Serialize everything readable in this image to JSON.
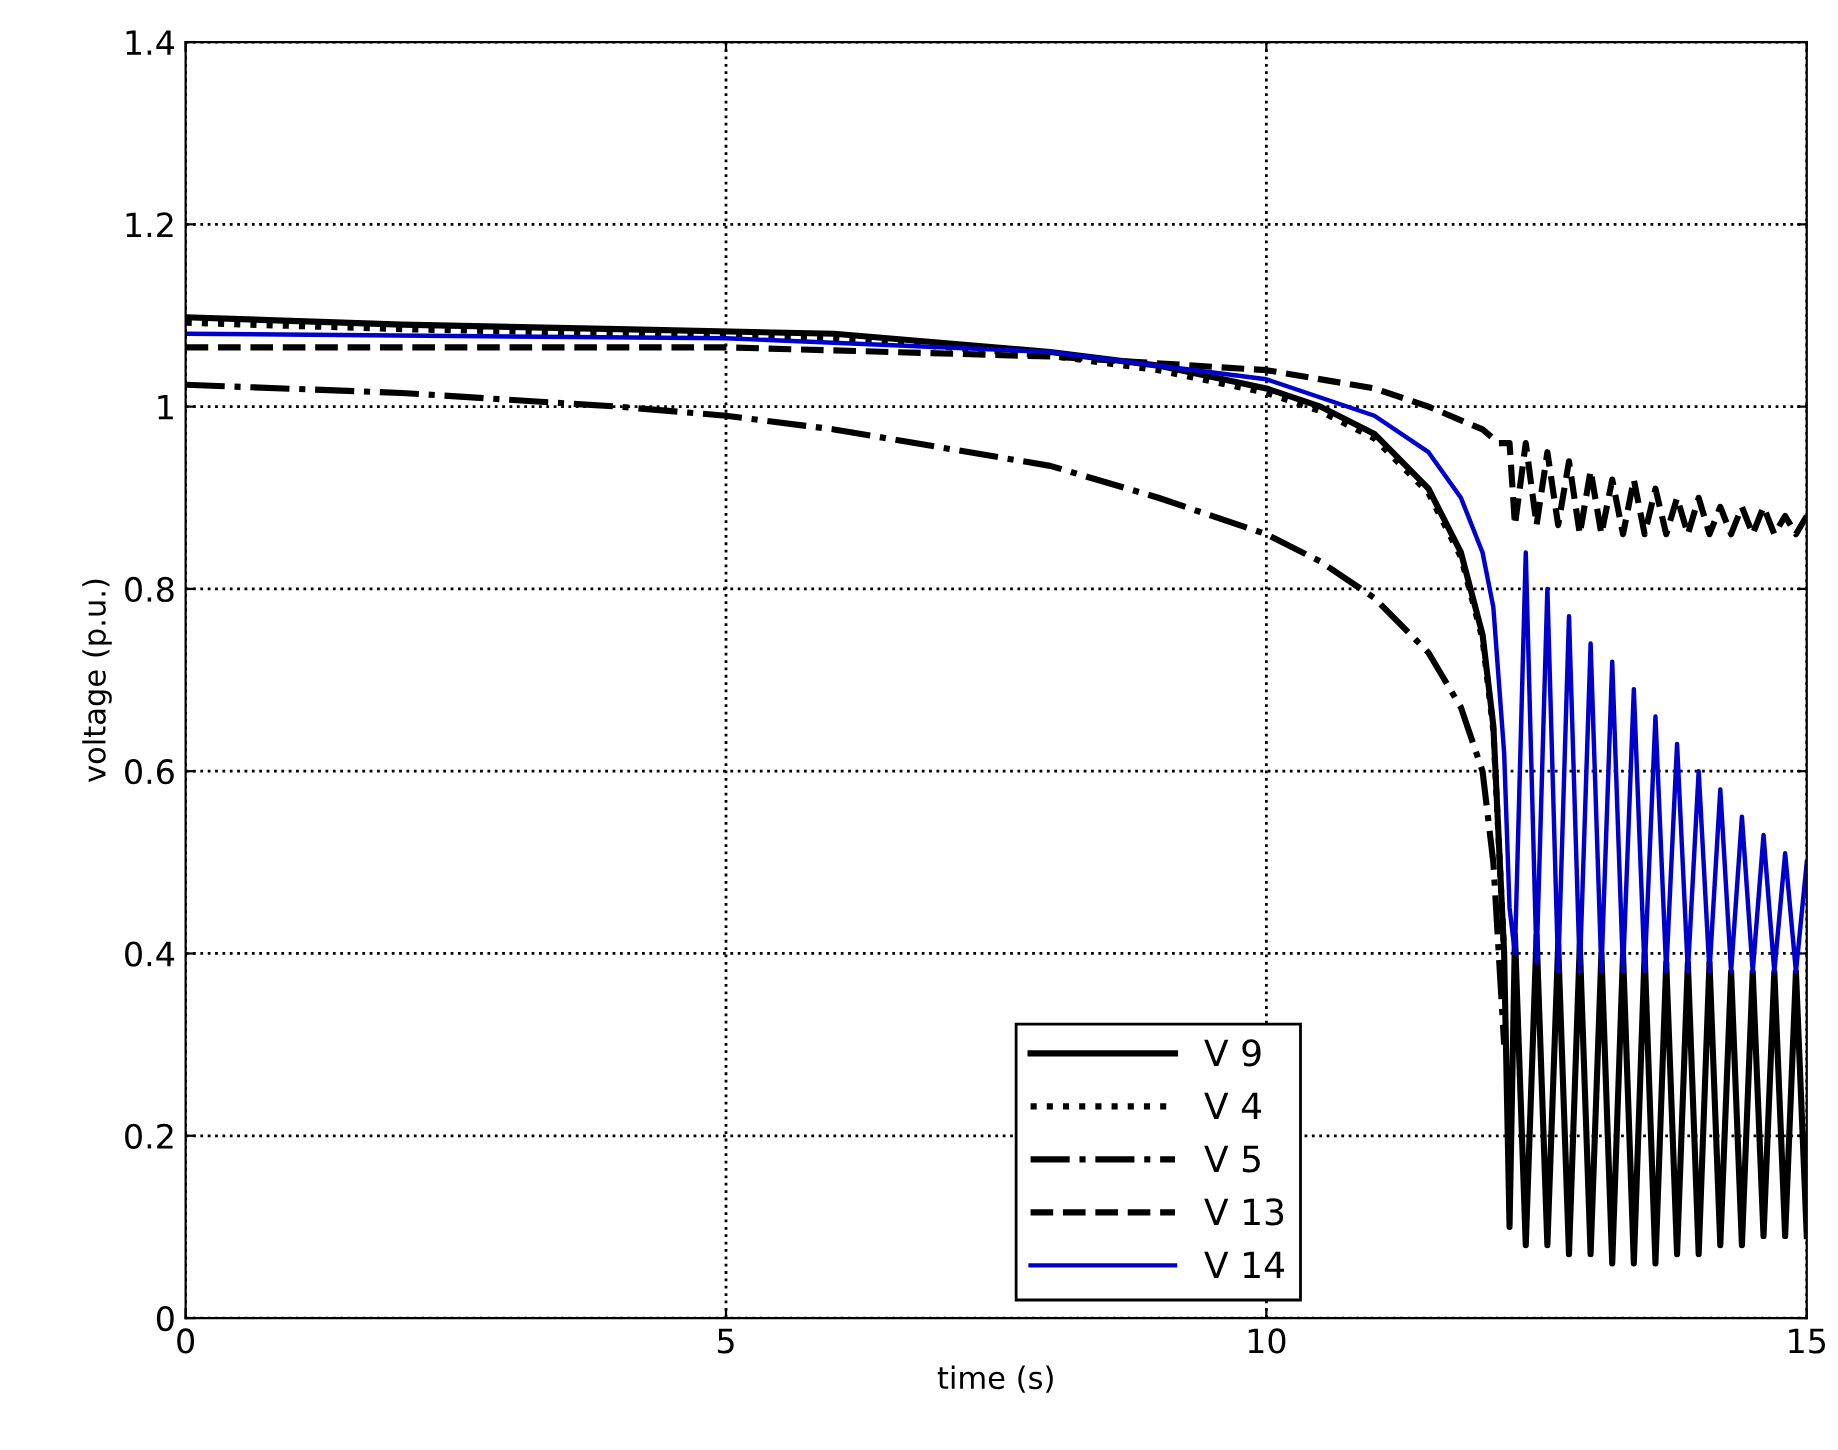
{
  "chart_data": {
    "type": "line",
    "xlabel": "time (s)",
    "ylabel": "voltage (p.u.)",
    "xlim": [
      0,
      15
    ],
    "ylim": [
      0,
      1.4
    ],
    "xticks": [
      0,
      5,
      10,
      15
    ],
    "yticks": [
      0,
      0.2,
      0.4,
      0.6,
      0.8,
      1,
      1.2,
      1.4
    ],
    "grid": true,
    "legend": "bottom",
    "series": [
      {
        "name": "V 9",
        "color": "#000000",
        "line_style": "solid",
        "x": [
          0,
          2,
          4,
          6,
          8,
          9,
          10,
          10.5,
          11,
          11.5,
          11.8,
          12.0,
          12.1,
          12.2,
          12.25,
          12.3,
          12.4,
          12.5,
          12.6,
          12.7,
          12.8,
          12.9,
          13.0,
          13.1,
          13.2,
          13.3,
          13.4,
          13.5,
          13.6,
          13.7,
          13.8,
          13.9,
          14.0,
          14.1,
          14.2,
          14.3,
          14.4,
          14.5,
          14.6,
          14.7,
          14.8,
          14.9,
          15.0
        ],
        "values": [
          1.098,
          1.09,
          1.085,
          1.08,
          1.06,
          1.045,
          1.02,
          1.0,
          0.97,
          0.91,
          0.84,
          0.75,
          0.65,
          0.4,
          0.1,
          0.42,
          0.08,
          0.42,
          0.08,
          0.41,
          0.07,
          0.41,
          0.07,
          0.4,
          0.06,
          0.4,
          0.06,
          0.4,
          0.06,
          0.39,
          0.07,
          0.39,
          0.07,
          0.39,
          0.08,
          0.38,
          0.08,
          0.38,
          0.09,
          0.38,
          0.09,
          0.38,
          0.09
        ]
      },
      {
        "name": "V 4",
        "color": "#000000",
        "line_style": "dotted",
        "x": [
          0,
          2,
          4,
          6,
          8,
          9,
          10,
          10.5,
          11,
          11.5,
          11.8,
          12.0,
          12.1,
          12.2
        ],
        "values": [
          1.092,
          1.085,
          1.08,
          1.075,
          1.056,
          1.04,
          1.015,
          0.995,
          0.965,
          0.905,
          0.835,
          0.745,
          0.645,
          0.4
        ]
      },
      {
        "name": "V 5",
        "color": "#000000",
        "line_style": "dashdot",
        "x": [
          0,
          2,
          4,
          5,
          6,
          7,
          8,
          9,
          10,
          10.5,
          11,
          11.5,
          11.8,
          12.0,
          12.1,
          12.2
        ],
        "values": [
          1.024,
          1.015,
          1.0,
          0.99,
          0.975,
          0.955,
          0.935,
          0.9,
          0.86,
          0.83,
          0.79,
          0.73,
          0.67,
          0.6,
          0.5,
          0.3
        ]
      },
      {
        "name": "V 13",
        "color": "#000000",
        "line_style": "dashed",
        "x": [
          0,
          5,
          8,
          10,
          11,
          11.5,
          12.0,
          12.15,
          12.25,
          12.3,
          12.4,
          12.5,
          12.6,
          12.7,
          12.8,
          12.9,
          13.0,
          13.1,
          13.2,
          13.3,
          13.4,
          13.5,
          13.6,
          13.7,
          13.8,
          13.9,
          14.0,
          14.1,
          14.2,
          14.3,
          14.4,
          14.5,
          14.6,
          14.7,
          14.8,
          14.9,
          15.0
        ],
        "values": [
          1.065,
          1.065,
          1.055,
          1.04,
          1.02,
          1.0,
          0.975,
          0.96,
          0.96,
          0.87,
          0.96,
          0.87,
          0.95,
          0.87,
          0.94,
          0.86,
          0.93,
          0.86,
          0.92,
          0.86,
          0.92,
          0.86,
          0.91,
          0.86,
          0.9,
          0.86,
          0.9,
          0.86,
          0.89,
          0.86,
          0.89,
          0.86,
          0.89,
          0.86,
          0.88,
          0.86,
          0.88
        ]
      },
      {
        "name": "V 14",
        "color": "#0000cc",
        "line_style": "solid",
        "x": [
          0,
          5,
          8,
          10,
          11,
          11.5,
          11.8,
          12.0,
          12.1,
          12.2,
          12.25,
          12.3,
          12.4,
          12.5,
          12.6,
          12.7,
          12.8,
          12.9,
          13.0,
          13.1,
          13.2,
          13.3,
          13.4,
          13.5,
          13.6,
          13.7,
          13.8,
          13.9,
          14.0,
          14.1,
          14.2,
          14.3,
          14.4,
          14.5,
          14.6,
          14.7,
          14.8,
          14.9,
          15.0
        ],
        "values": [
          1.08,
          1.075,
          1.06,
          1.03,
          0.99,
          0.95,
          0.9,
          0.84,
          0.78,
          0.62,
          0.45,
          0.4,
          0.84,
          0.39,
          0.8,
          0.38,
          0.77,
          0.38,
          0.74,
          0.38,
          0.72,
          0.38,
          0.69,
          0.38,
          0.66,
          0.38,
          0.63,
          0.38,
          0.6,
          0.38,
          0.58,
          0.38,
          0.55,
          0.38,
          0.53,
          0.38,
          0.51,
          0.38,
          0.5
        ]
      }
    ]
  }
}
